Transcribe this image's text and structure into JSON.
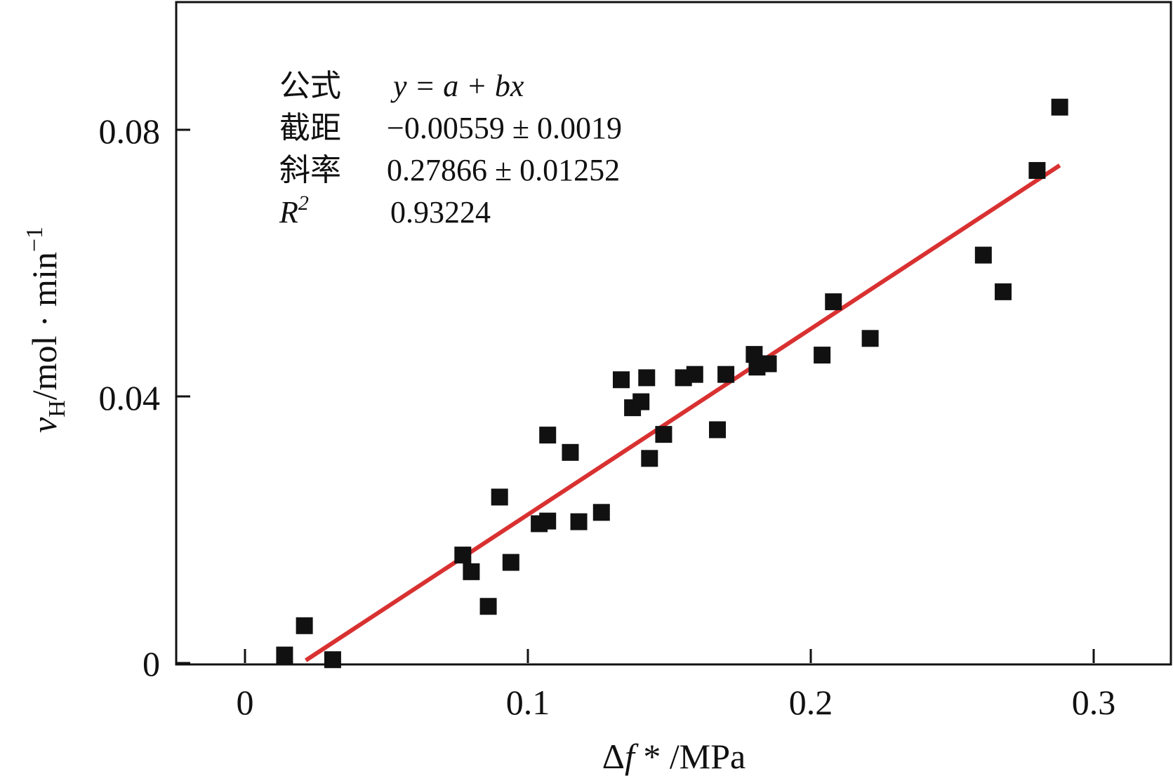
{
  "chart_data": {
    "type": "scatter",
    "xlabel": "Δf * /MPa",
    "ylabel": "vH/mol · min−1",
    "xlim": [
      -0.025,
      0.325
    ],
    "ylim": [
      0,
      0.0985
    ],
    "x_ticks": [
      "0",
      "0.1",
      "0.2",
      "0.3"
    ],
    "x_tick_values": [
      0,
      0.1,
      0.2,
      0.3
    ],
    "y_ticks": [
      "0",
      "0.04",
      "0.08"
    ],
    "y_tick_values": [
      0,
      0.04,
      0.08
    ],
    "grid": false,
    "points": [
      {
        "x": 0.014,
        "y": 0.0012
      },
      {
        "x": 0.021,
        "y": 0.0056
      },
      {
        "x": 0.031,
        "y": 0.0005
      },
      {
        "x": 0.077,
        "y": 0.0162
      },
      {
        "x": 0.08,
        "y": 0.0137
      },
      {
        "x": 0.086,
        "y": 0.0085
      },
      {
        "x": 0.09,
        "y": 0.0249
      },
      {
        "x": 0.094,
        "y": 0.0151
      },
      {
        "x": 0.104,
        "y": 0.0209
      },
      {
        "x": 0.107,
        "y": 0.0213
      },
      {
        "x": 0.107,
        "y": 0.0342
      },
      {
        "x": 0.115,
        "y": 0.0316
      },
      {
        "x": 0.118,
        "y": 0.0212
      },
      {
        "x": 0.126,
        "y": 0.0226
      },
      {
        "x": 0.133,
        "y": 0.0425
      },
      {
        "x": 0.137,
        "y": 0.0383
      },
      {
        "x": 0.14,
        "y": 0.0392
      },
      {
        "x": 0.142,
        "y": 0.0428
      },
      {
        "x": 0.143,
        "y": 0.0307
      },
      {
        "x": 0.148,
        "y": 0.0343
      },
      {
        "x": 0.155,
        "y": 0.0428
      },
      {
        "x": 0.159,
        "y": 0.0433
      },
      {
        "x": 0.167,
        "y": 0.035
      },
      {
        "x": 0.17,
        "y": 0.0433
      },
      {
        "x": 0.18,
        "y": 0.0463
      },
      {
        "x": 0.181,
        "y": 0.0444
      },
      {
        "x": 0.185,
        "y": 0.0449
      },
      {
        "x": 0.204,
        "y": 0.0462
      },
      {
        "x": 0.208,
        "y": 0.0542
      },
      {
        "x": 0.221,
        "y": 0.0487
      },
      {
        "x": 0.261,
        "y": 0.0612
      },
      {
        "x": 0.268,
        "y": 0.0557
      },
      {
        "x": 0.28,
        "y": 0.0739
      },
      {
        "x": 0.288,
        "y": 0.0834
      }
    ],
    "fit_line": {
      "intercept": -0.00559,
      "slope": 0.27866,
      "x_range": [
        0.0215,
        0.288
      ],
      "color": "#d93131"
    },
    "annotation": {
      "rows": [
        {
          "label": "公式",
          "value": "y = a + bx"
        },
        {
          "label": "截距",
          "value": "−0.00559 ± 0.0019"
        },
        {
          "label": "斜率",
          "value": "0.27866 ± 0.01252"
        },
        {
          "label": "R2",
          "value": "0.93224"
        }
      ]
    },
    "marker_color": "#111111",
    "marker": "square"
  }
}
